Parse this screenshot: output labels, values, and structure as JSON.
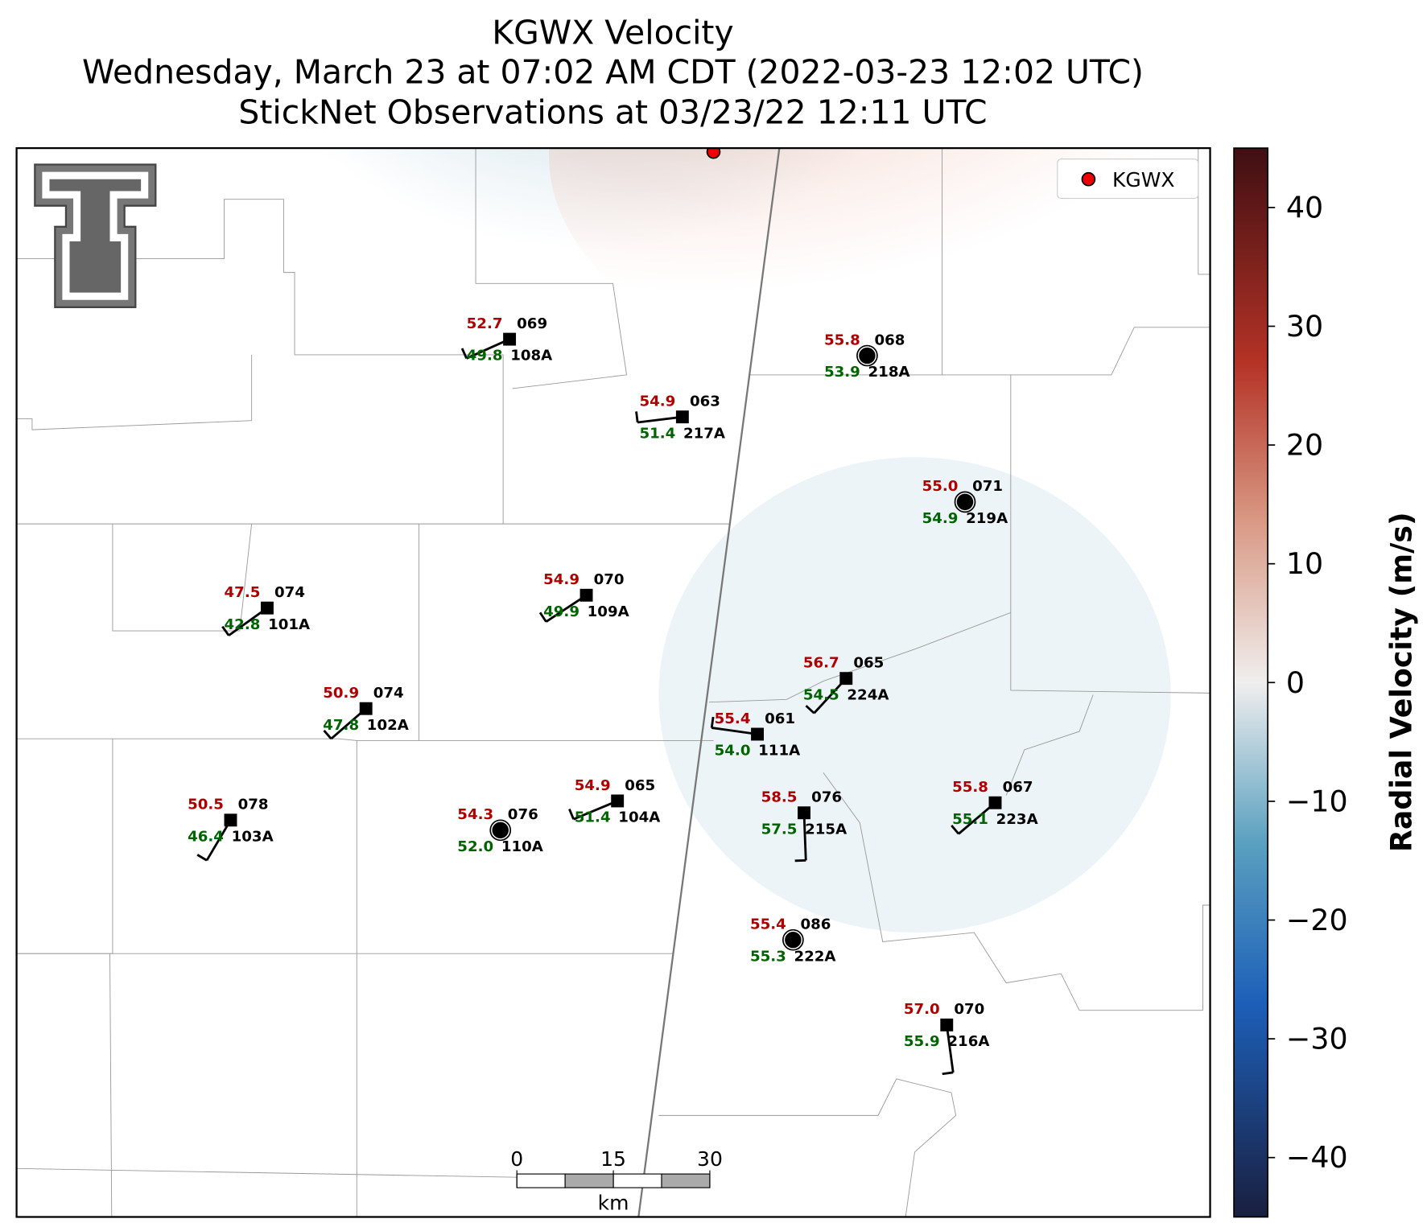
{
  "title": [
    "KGWX Velocity",
    "Wednesday, March 23 at 07:02 AM CDT (2022-03-23 12:02 UTC)",
    "StickNet Observations at 03/23/22 12:11 UTC"
  ],
  "legend": {
    "label": "KGWX"
  },
  "stations": [
    {
      "id": "108A",
      "temperature": "52.7",
      "dewpoint": "49.8",
      "pressure": "069"
    },
    {
      "id": "217A",
      "temperature": "54.9",
      "dewpoint": "51.4",
      "pressure": "063"
    },
    {
      "id": "218A",
      "temperature": "55.8",
      "dewpoint": "53.9",
      "pressure": "068"
    },
    {
      "id": "219A",
      "temperature": "55.0",
      "dewpoint": "54.9",
      "pressure": "071"
    },
    {
      "id": "101A",
      "temperature": "47.5",
      "dewpoint": "42.8",
      "pressure": "074"
    },
    {
      "id": "109A",
      "temperature": "54.9",
      "dewpoint": "49.9",
      "pressure": "070"
    },
    {
      "id": "102A",
      "temperature": "50.9",
      "dewpoint": "47.8",
      "pressure": "074"
    },
    {
      "id": "224A",
      "temperature": "56.7",
      "dewpoint": "54.5",
      "pressure": "065"
    },
    {
      "id": "111A",
      "temperature": "55.4",
      "dewpoint": "54.0",
      "pressure": "061"
    },
    {
      "id": "103A",
      "temperature": "50.5",
      "dewpoint": "46.4",
      "pressure": "078"
    },
    {
      "id": "110A",
      "temperature": "54.3",
      "dewpoint": "52.0",
      "pressure": "076"
    },
    {
      "id": "104A",
      "temperature": "54.9",
      "dewpoint": "51.4",
      "pressure": "065"
    },
    {
      "id": "215A",
      "temperature": "58.5",
      "dewpoint": "57.5",
      "pressure": "076"
    },
    {
      "id": "223A",
      "temperature": "55.8",
      "dewpoint": "55.1",
      "pressure": "067"
    },
    {
      "id": "222A",
      "temperature": "55.4",
      "dewpoint": "55.3",
      "pressure": "086"
    },
    {
      "id": "216A",
      "temperature": "57.0",
      "dewpoint": "55.9",
      "pressure": "070"
    }
  ],
  "colorbar": {
    "label": "Radial Velocity (m/s)",
    "lim": [
      -45,
      45
    ],
    "ticks": [
      {
        "value": -40,
        "label": "−40"
      },
      {
        "value": -30,
        "label": "−30"
      },
      {
        "value": -20,
        "label": "−20"
      },
      {
        "value": -10,
        "label": "−10"
      },
      0,
      10,
      20,
      30,
      40
    ]
  },
  "scale_bar": {
    "ticks": [
      0,
      15,
      30
    ],
    "unit": "km"
  }
}
